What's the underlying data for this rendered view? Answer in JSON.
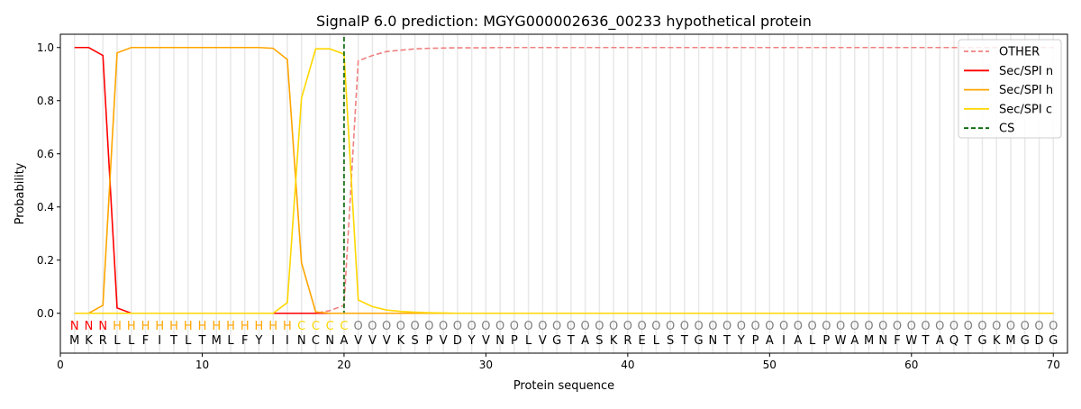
{
  "chart_data": {
    "type": "line",
    "title": "SignalP 6.0 prediction: MGYG000002636_00233 hypothetical protein",
    "xlabel": "Protein sequence",
    "ylabel": "Probability",
    "xlim": [
      0,
      71
    ],
    "ylim": [
      -0.15,
      1.05
    ],
    "xticks": [
      0,
      10,
      20,
      30,
      40,
      50,
      60,
      70
    ],
    "yticks": [
      "0.0",
      "0.2",
      "0.4",
      "0.6",
      "0.8",
      "1.0"
    ],
    "legend_position": "top-right",
    "sequence": [
      "M",
      "K",
      "R",
      "L",
      "L",
      "F",
      "I",
      "T",
      "L",
      "T",
      "M",
      "L",
      "F",
      "Y",
      "I",
      "I",
      "N",
      "C",
      "N",
      "A",
      "V",
      "V",
      "V",
      "K",
      "S",
      "P",
      "V",
      "D",
      "Y",
      "V",
      "N",
      "P",
      "L",
      "V",
      "G",
      "T",
      "A",
      "S",
      "K",
      "R",
      "E",
      "L",
      "S",
      "T",
      "G",
      "N",
      "T",
      "Y",
      "P",
      "A",
      "I",
      "A",
      "L",
      "P",
      "W",
      "A",
      "M",
      "N",
      "F",
      "W",
      "T",
      "A",
      "Q",
      "T",
      "G",
      "K",
      "M",
      "G",
      "D",
      "G"
    ],
    "labels": [
      "N",
      "N",
      "N",
      "H",
      "H",
      "H",
      "H",
      "H",
      "H",
      "H",
      "H",
      "H",
      "H",
      "H",
      "H",
      "H",
      "C",
      "C",
      "C",
      "C",
      "O",
      "O",
      "O",
      "O",
      "O",
      "O",
      "O",
      "O",
      "O",
      "O",
      "O",
      "O",
      "O",
      "O",
      "O",
      "O",
      "O",
      "O",
      "O",
      "O",
      "O",
      "O",
      "O",
      "O",
      "O",
      "O",
      "O",
      "O",
      "O",
      "O",
      "O",
      "O",
      "O",
      "O",
      "O",
      "O",
      "O",
      "O",
      "O",
      "O",
      "O",
      "O",
      "O",
      "O",
      "O",
      "O",
      "O",
      "O",
      "O",
      "O"
    ],
    "label_colors": {
      "N": "#ff0000",
      "H": "#ffa500",
      "C": "#ffd700",
      "O": "#808080"
    },
    "series": [
      {
        "name": "OTHER",
        "color": "#f08080",
        "dash": true,
        "values": [
          0,
          0,
          0,
          0,
          0,
          0,
          0,
          0,
          0,
          0,
          0,
          0,
          0,
          0,
          0,
          0,
          0,
          0,
          0.01,
          0.03,
          0.95,
          0.97,
          0.985,
          0.99,
          0.995,
          0.997,
          0.998,
          0.999,
          0.999,
          0.999,
          1,
          1,
          1,
          1,
          1,
          1,
          1,
          1,
          1,
          1,
          1,
          1,
          1,
          1,
          1,
          1,
          1,
          1,
          1,
          1,
          1,
          1,
          1,
          1,
          1,
          1,
          1,
          1,
          1,
          1,
          1,
          1,
          1,
          1,
          1,
          1,
          1,
          1,
          1,
          1
        ]
      },
      {
        "name": "Sec/SPI n",
        "color": "#ff0000",
        "values": [
          1,
          1,
          0.97,
          0.02,
          0,
          0,
          0,
          0,
          0,
          0,
          0,
          0,
          0,
          0,
          0,
          0,
          0,
          0,
          0,
          0,
          0,
          0,
          0,
          0,
          0,
          0,
          0,
          0,
          0,
          0,
          0,
          0,
          0,
          0,
          0,
          0,
          0,
          0,
          0,
          0,
          0,
          0,
          0,
          0,
          0,
          0,
          0,
          0,
          0,
          0,
          0,
          0,
          0,
          0,
          0,
          0,
          0,
          0,
          0,
          0,
          0,
          0,
          0,
          0,
          0,
          0,
          0,
          0,
          0,
          0
        ]
      },
      {
        "name": "Sec/SPI h",
        "color": "#ffa500",
        "values": [
          0,
          0,
          0.03,
          0.98,
          1,
          1,
          1,
          1,
          1,
          1,
          1,
          1,
          1,
          1,
          0.997,
          0.955,
          0.19,
          0.005,
          0,
          0,
          0,
          0,
          0,
          0,
          0,
          0,
          0,
          0,
          0,
          0,
          0,
          0,
          0,
          0,
          0,
          0,
          0,
          0,
          0,
          0,
          0,
          0,
          0,
          0,
          0,
          0,
          0,
          0,
          0,
          0,
          0,
          0,
          0,
          0,
          0,
          0,
          0,
          0,
          0,
          0,
          0,
          0,
          0,
          0,
          0,
          0,
          0,
          0,
          0,
          0
        ]
      },
      {
        "name": "Sec/SPI c",
        "color": "#ffd700",
        "values": [
          0,
          0,
          0,
          0,
          0,
          0,
          0,
          0,
          0,
          0,
          0,
          0,
          0,
          0,
          0,
          0.04,
          0.81,
          0.995,
          0.995,
          0.975,
          0.05,
          0.025,
          0.012,
          0.007,
          0.004,
          0.002,
          0.001,
          0,
          0,
          0,
          0,
          0,
          0,
          0,
          0,
          0,
          0,
          0,
          0,
          0,
          0,
          0,
          0,
          0,
          0,
          0,
          0,
          0,
          0,
          0,
          0,
          0,
          0,
          0,
          0,
          0,
          0,
          0,
          0,
          0,
          0,
          0,
          0,
          0,
          0,
          0,
          0,
          0,
          0,
          0
        ]
      }
    ],
    "cs": {
      "name": "CS",
      "x": 20,
      "color": "#006400"
    }
  }
}
